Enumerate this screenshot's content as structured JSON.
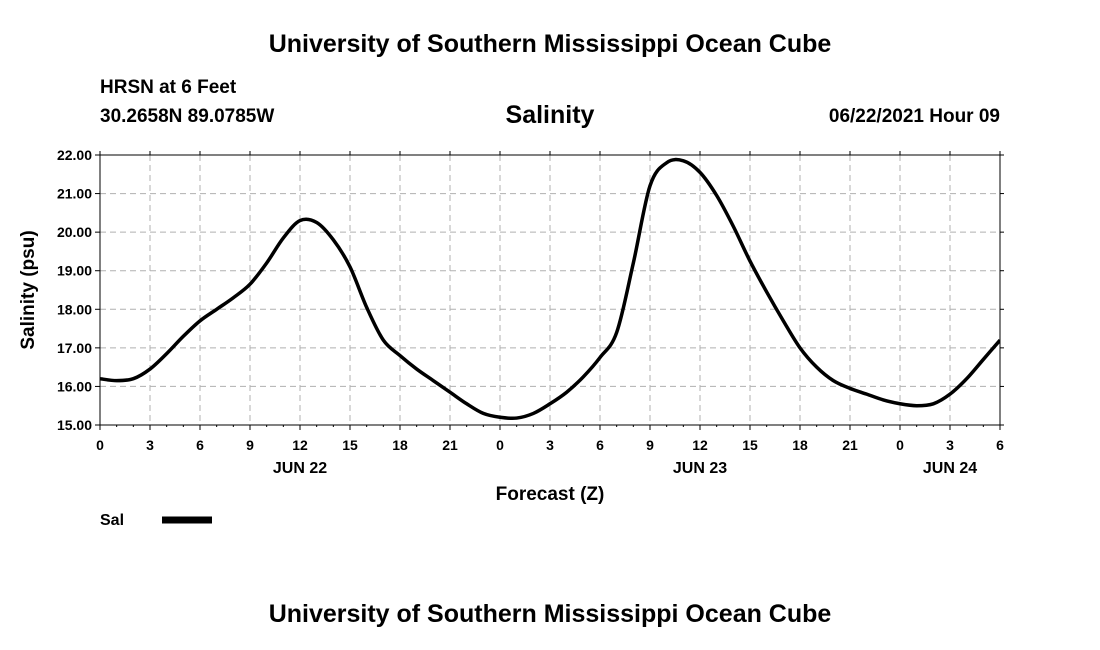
{
  "header": {
    "top_title": "University of Southern Mississippi Ocean Cube",
    "station": "HRSN at 6 Feet",
    "coords": "30.2658N  89.0785W",
    "variable_title": "Salinity",
    "datetime": "06/22/2021 Hour 09",
    "bottom_title": "University of Southern Mississippi Ocean Cube"
  },
  "chart_data": {
    "type": "line",
    "title": "Salinity",
    "xlabel": "Forecast (Z)",
    "ylabel": "Salinity (psu)",
    "ylim": [
      15,
      22
    ],
    "xlim": [
      0,
      54
    ],
    "grid": true,
    "x_tick_labels": [
      "0",
      "3",
      "6",
      "9",
      "12",
      "15",
      "18",
      "21",
      "0",
      "3",
      "6",
      "9",
      "12",
      "15",
      "18",
      "21",
      "0",
      "3",
      "6"
    ],
    "y_tick_labels": [
      "15.00",
      "16.00",
      "17.00",
      "18.00",
      "19.00",
      "20.00",
      "21.00",
      "22.00"
    ],
    "day_labels": [
      {
        "label": "JUN 22",
        "x": 12
      },
      {
        "label": "JUN 23",
        "x": 36
      },
      {
        "label": "JUN 24",
        "x": 51
      }
    ],
    "legend": {
      "placement": "bottom-left",
      "label": "Sal",
      "color": "#000000"
    },
    "series": [
      {
        "name": "Sal",
        "color": "#000000",
        "x": [
          0,
          1,
          2,
          3,
          4,
          5,
          6,
          7,
          8,
          9,
          10,
          11,
          12,
          13,
          14,
          15,
          16,
          17,
          18,
          19,
          20,
          21,
          22,
          23,
          24,
          25,
          26,
          27,
          28,
          29,
          30,
          31,
          32,
          33,
          34,
          35,
          36,
          37,
          38,
          39,
          40,
          41,
          42,
          43,
          44,
          45,
          46,
          47,
          48,
          49,
          50,
          51,
          52,
          53,
          54
        ],
        "y": [
          16.2,
          16.15,
          16.2,
          16.45,
          16.85,
          17.3,
          17.7,
          18.0,
          18.3,
          18.65,
          19.2,
          19.85,
          20.3,
          20.25,
          19.8,
          19.1,
          18.05,
          17.2,
          16.8,
          16.45,
          16.15,
          15.85,
          15.55,
          15.3,
          15.2,
          15.18,
          15.3,
          15.55,
          15.85,
          16.25,
          16.75,
          17.4,
          19.2,
          21.2,
          21.8,
          21.85,
          21.55,
          20.95,
          20.15,
          19.25,
          18.45,
          17.7,
          17.0,
          16.5,
          16.15,
          15.95,
          15.8,
          15.65,
          15.55,
          15.5,
          15.55,
          15.8,
          16.2,
          16.7,
          17.2
        ]
      }
    ]
  }
}
